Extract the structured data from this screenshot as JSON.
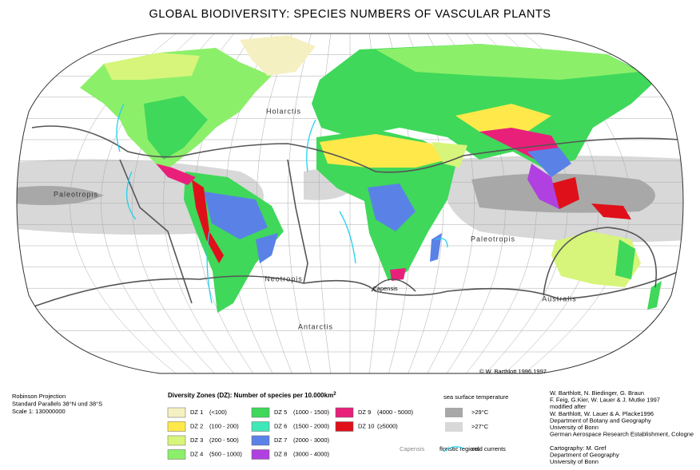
{
  "title": "GLOBAL BIODIVERSITY:  SPECIES NUMBERS OF VASCULAR PLANTS",
  "regions": [
    "Holarctis",
    "Paleotropis",
    "Neotropis",
    "Capensis",
    "Paleotropis",
    "Australis",
    "Antarctis"
  ],
  "copyright": "© W. Barthlott 1996,1997",
  "projection": [
    "Robinson Projection",
    "Standard Parallels 38°N und 38°S",
    "Scale 1: 130000000"
  ],
  "legend": {
    "title": "Diversity Zones (DZ): Number of species per 10.000km",
    "title_sup": "2",
    "zones": [
      {
        "label": "DZ  1",
        "range": "(<100)",
        "color": "#f5f0c2"
      },
      {
        "label": "DZ  2",
        "range": "(100 -  200)",
        "color": "#ffe94a"
      },
      {
        "label": "DZ  3",
        "range": "(200 -  500)",
        "color": "#d6f57a"
      },
      {
        "label": "DZ  4",
        "range": "(500 - 1000)",
        "color": "#8cef6a"
      },
      {
        "label": "DZ  5",
        "range": "(1000 - 1500)",
        "color": "#3fd85a"
      },
      {
        "label": "DZ  6",
        "range": "(1500 - 2000)",
        "color": "#3fe8b8"
      },
      {
        "label": "DZ  7",
        "range": "(2000 - 3000)",
        "color": "#5a82e6"
      },
      {
        "label": "DZ  8",
        "range": "(3000 - 4000)",
        "color": "#b040e0"
      },
      {
        "label": "DZ  9",
        "range": "(4000 - 5000)",
        "color": "#e8207a"
      },
      {
        "label": "DZ 10",
        "range": "(≥5000)",
        "color": "#e0101a"
      }
    ],
    "floristic_example": "Capensis",
    "floristic_label": "floristic regions",
    "sst_title": "sea surface temperature",
    "sst": [
      {
        "label": ">29°C",
        "color": "#a8a8a8"
      },
      {
        "label": ">27°C",
        "color": "#d8d8d8"
      }
    ],
    "currents": "cold currents"
  },
  "credits": [
    "W. Barthlott, N. Biedinger, G. Braun",
    "F. Feig, G.Kier, W. Lauer & J. Mutke 1997",
    "modified after",
    "W. Barthlott, W. Lauer & A. Placke1996",
    "Department of Botany and Geography",
    "University of Bonn",
    "German Aerospace Research Establishment, Cologne",
    "",
    "Cartography: M. Gref",
    "Department of Geography",
    "University of Bonn"
  ]
}
